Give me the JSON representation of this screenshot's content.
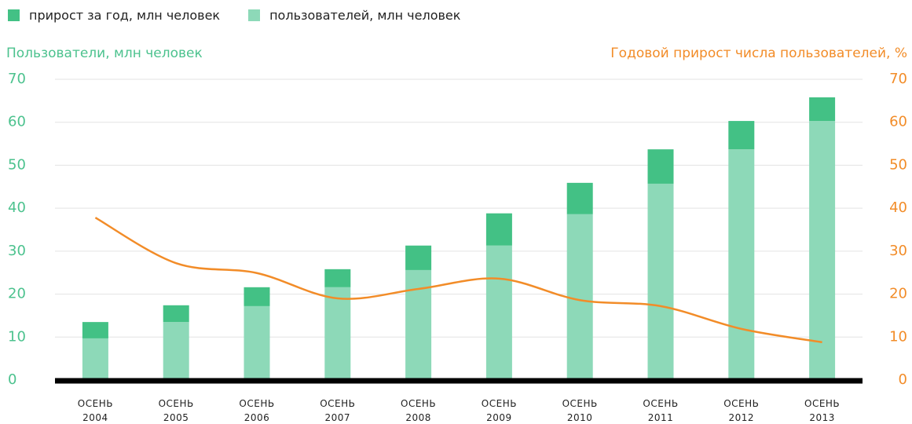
{
  "chart_data": {
    "type": "bar",
    "stacked": true,
    "ylabel": "Пользователи, млн человек",
    "y2label": "Годовой прирост числа пользователей, %",
    "categories": [
      "ОСЕНЬ 2004",
      "ОСЕНЬ 2005",
      "ОСЕНЬ 2006",
      "ОСЕНЬ 2007",
      "ОСЕНЬ 2008",
      "ОСЕНЬ 2009",
      "ОСЕНЬ 2010",
      "ОСЕНЬ 2011",
      "ОСЕНЬ 2012",
      "ОСЕНЬ 2013"
    ],
    "series": [
      {
        "name": "прирост за год, млн человек",
        "color": "#43c185",
        "values": [
          3.8,
          3.9,
          4.4,
          4.2,
          5.7,
          7.5,
          7.3,
          8.0,
          6.6,
          5.5
        ]
      },
      {
        "name": "пользователей, млн человек",
        "color": "#8dd9b8",
        "values": [
          9.7,
          13.5,
          17.2,
          21.6,
          25.6,
          31.3,
          38.6,
          45.7,
          53.7,
          60.3
        ]
      }
    ],
    "line": {
      "type": "line",
      "color": "#f28c28",
      "axis": "y2",
      "values": [
        37.8,
        27.2,
        24.9,
        19.0,
        21.2,
        23.6,
        18.6,
        17.2,
        11.9,
        8.8
      ]
    },
    "ylim": [
      0,
      70
    ],
    "yticks": [
      0,
      10,
      20,
      30,
      40,
      50,
      60,
      70
    ],
    "y2lim": [
      0,
      70
    ],
    "y2ticks": [
      0,
      10,
      20,
      30,
      40,
      50,
      60,
      70
    ],
    "grid": true,
    "legend": "top-left"
  }
}
